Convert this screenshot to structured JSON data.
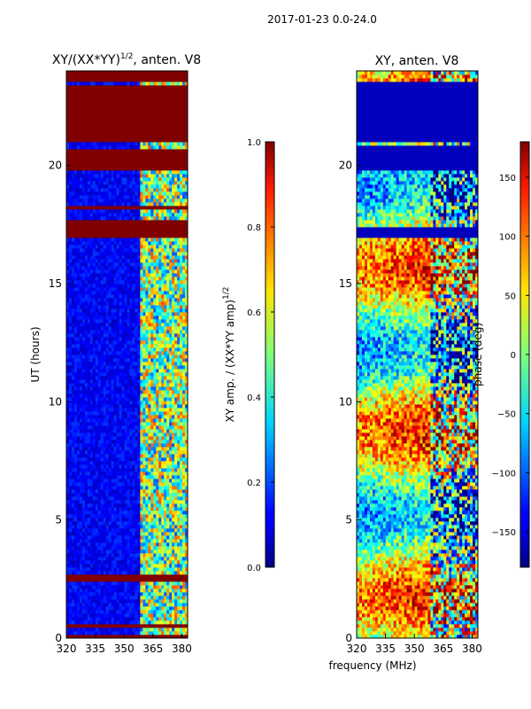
{
  "suptitle": "2017-01-23 0.0-24.0",
  "xlabel": "frequency (MHz)",
  "chart_data": [
    {
      "type": "heatmap",
      "title": "XY/(XX*YY)",
      "title_sup": "1/2",
      "title_suffix": ", anten. V8",
      "ylabel": "UT (hours)",
      "xlim": [
        320,
        383
      ],
      "ylim": [
        0,
        24
      ],
      "xticks": [
        320,
        335,
        350,
        365,
        380
      ],
      "yticks": [
        0,
        5,
        10,
        15,
        20
      ],
      "colorbar": {
        "label": "XY amp. / (XX*YY amp)",
        "label_sup": "1/2",
        "range": [
          0.0,
          1.0
        ],
        "ticks": [
          "0.0",
          "0.2",
          "0.4",
          "0.6",
          "0.8",
          "1.0"
        ]
      },
      "red_bands_hours": [
        [
          0,
          0.15
        ],
        [
          0.45,
          0.55
        ],
        [
          2.45,
          2.65
        ],
        [
          17.0,
          17.7
        ],
        [
          18.1,
          18.3
        ],
        [
          19.8,
          20.7
        ],
        [
          21.0,
          23.4
        ],
        [
          23.6,
          24.0
        ]
      ],
      "bright_frequency_range_mhz": [
        359,
        383
      ]
    },
    {
      "type": "heatmap",
      "title": "XY, anten. V8",
      "xlim": [
        320,
        383
      ],
      "ylim": [
        0,
        24
      ],
      "xticks": [
        320,
        335,
        350,
        365,
        380
      ],
      "yticks": [
        0,
        5,
        10,
        15,
        20
      ],
      "colorbar": {
        "label": "phase (deg)",
        "range": [
          -180,
          180
        ],
        "ticks": [
          "-150",
          "-100",
          "-50",
          "0",
          "50",
          "100",
          "150"
        ]
      },
      "blank_bands_hours": [
        [
          21.0,
          23.6
        ],
        [
          19.8,
          20.8
        ],
        [
          17.0,
          17.4
        ]
      ]
    }
  ]
}
